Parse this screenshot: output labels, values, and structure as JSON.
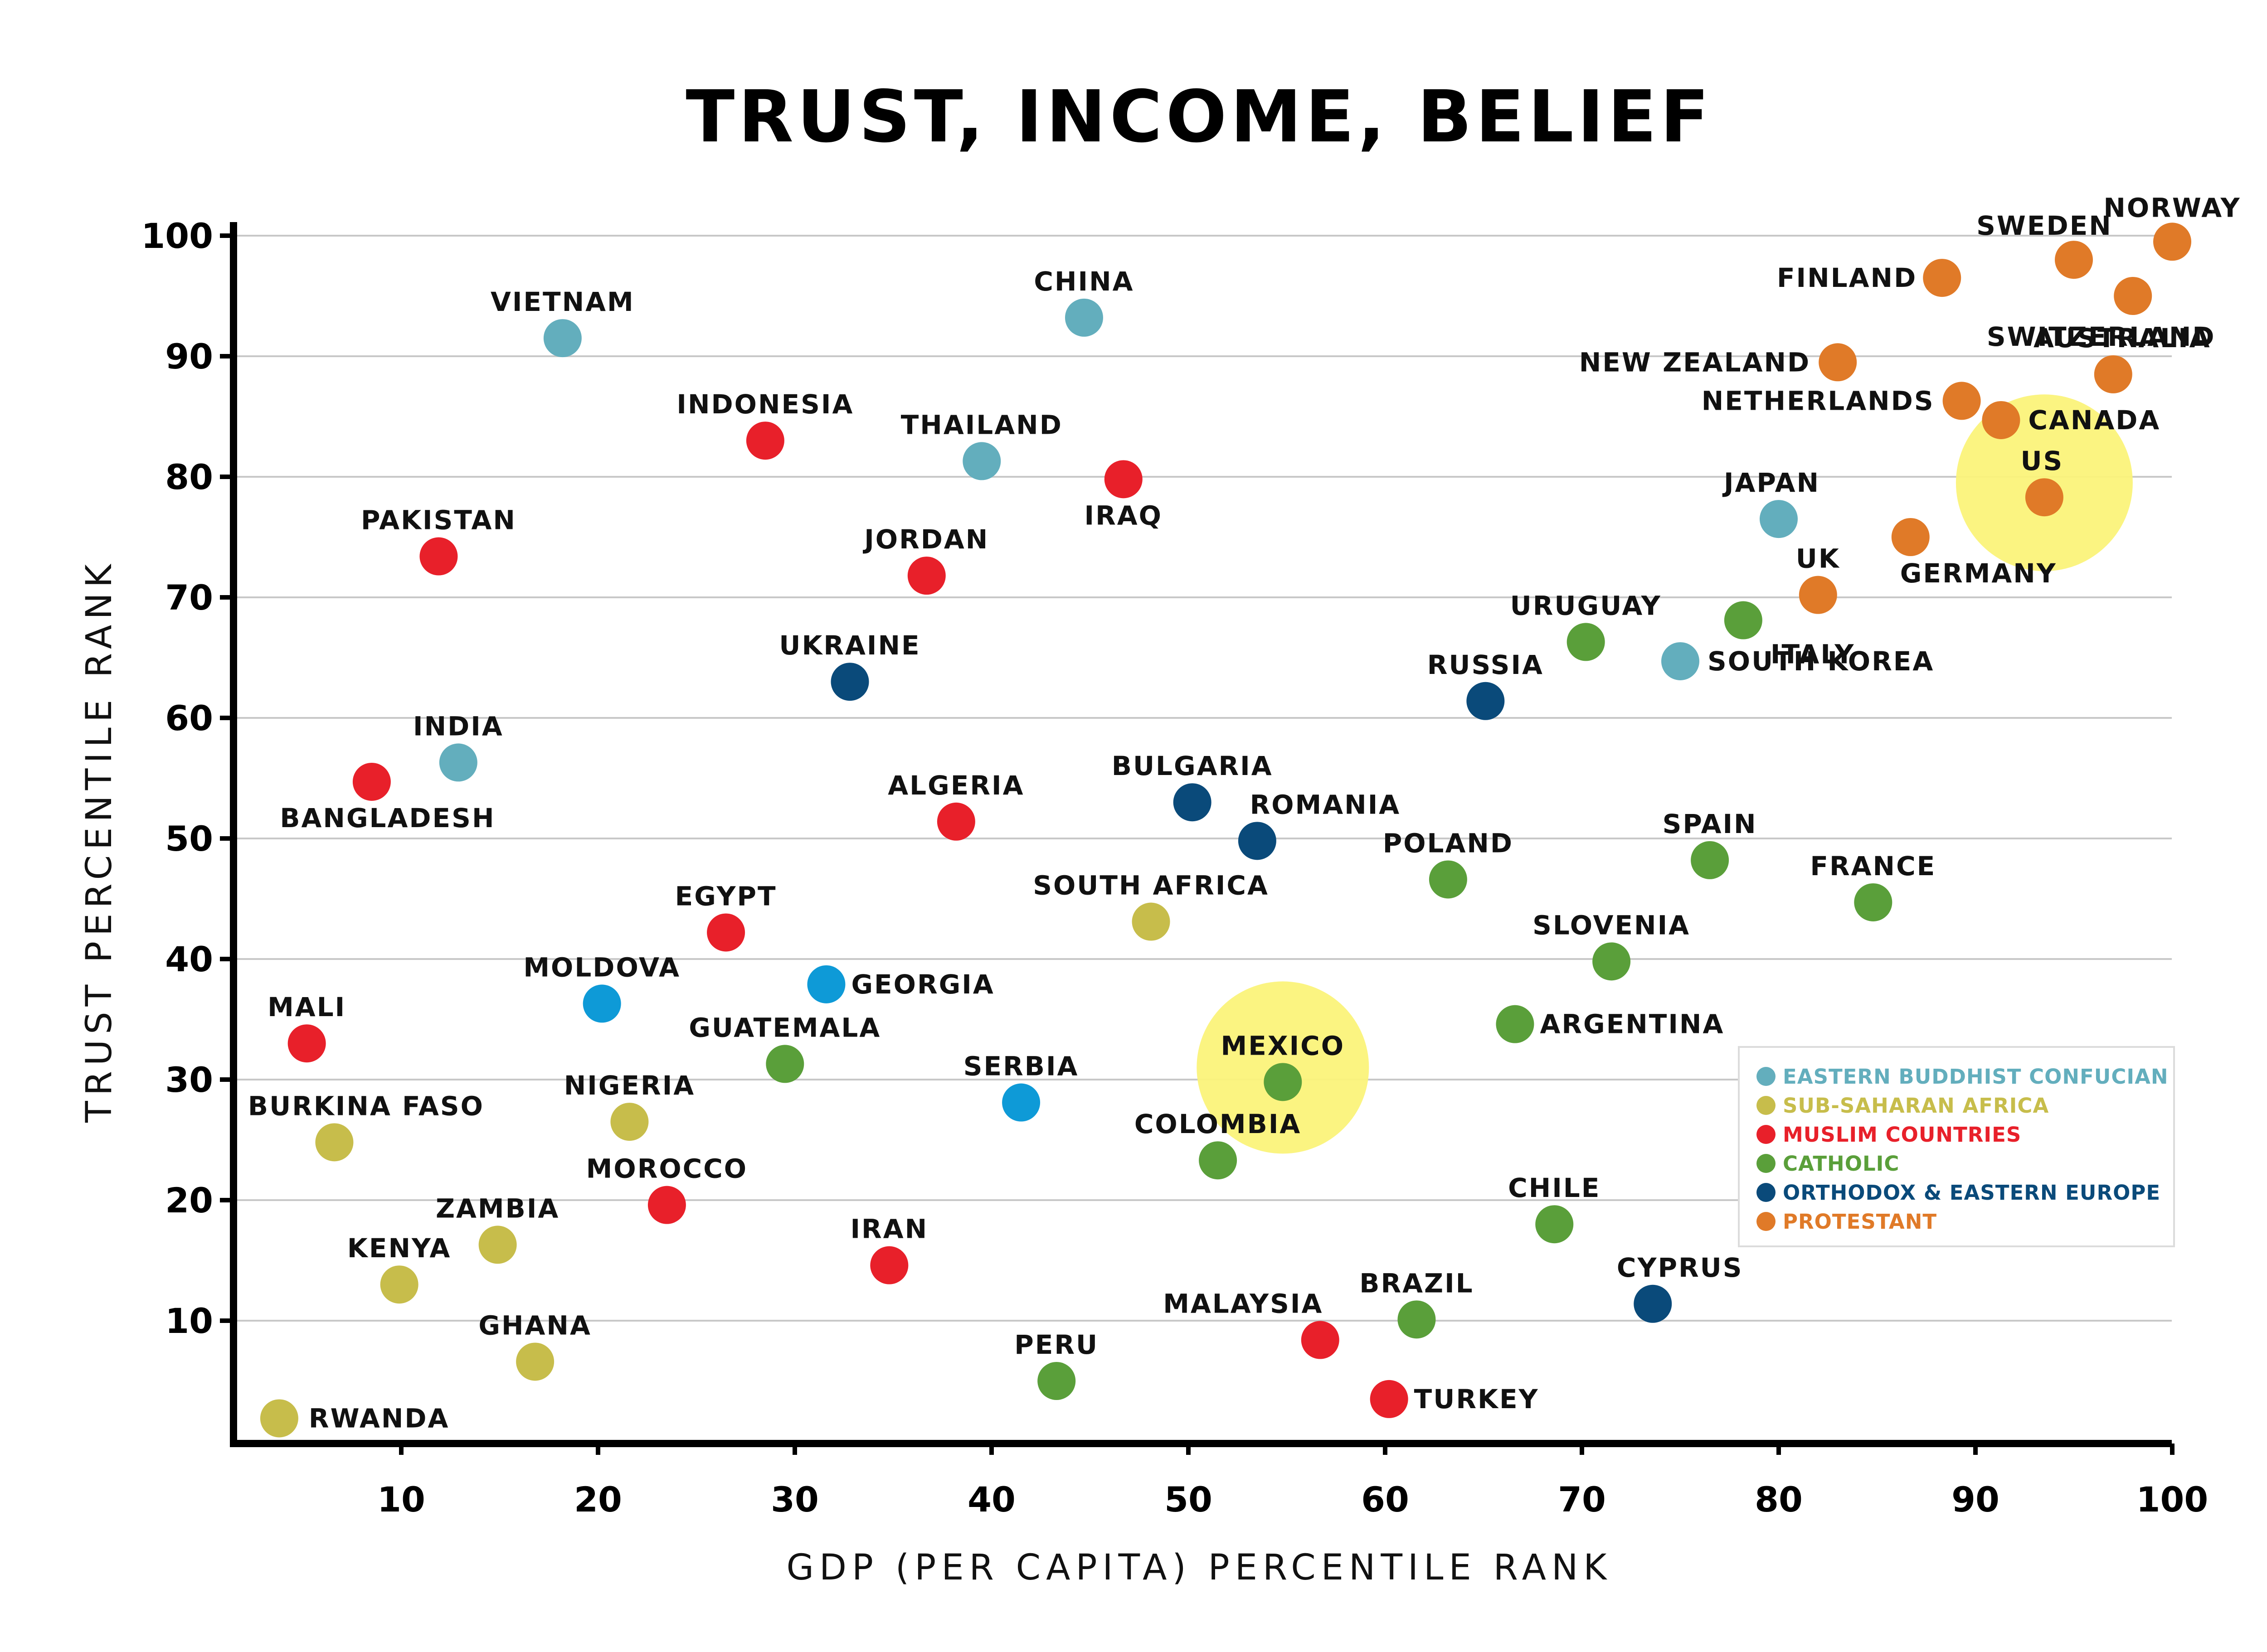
{
  "chart_data": {
    "type": "scatter",
    "title": "TRUST, INCOME, BELIEF",
    "xlabel": "GDP (PER CAPITA) PERCENTILE RANK",
    "ylabel": "TRUST PERCENTILE RANK",
    "xlim": [
      1,
      100
    ],
    "ylim": [
      0,
      100
    ],
    "x_ticks": [
      10,
      20,
      30,
      40,
      50,
      60,
      70,
      80,
      90,
      100
    ],
    "y_ticks": [
      10,
      20,
      30,
      40,
      50,
      60,
      70,
      80,
      90,
      100
    ],
    "grid": "horizontal",
    "legend_position": "bottom-right",
    "groups": [
      {
        "name": "EASTERN BUDDHIST CONFUCIAN",
        "color": "#63aebd"
      },
      {
        "name": "SUB-SAHARAN AFRICA",
        "color": "#c7bd4b"
      },
      {
        "name": "MUSLIM COUNTRIES",
        "color": "#e8202a"
      },
      {
        "name": "CATHOLIC",
        "color": "#5a9f3a"
      },
      {
        "name": "ORTHODOX & EASTERN EUROPE",
        "color": "#0a4a7a"
      },
      {
        "name": "PROTESTANT",
        "color": "#e07a28"
      }
    ],
    "highlights": [
      {
        "label": "MEXICO",
        "x": 54.8,
        "y": 31
      },
      {
        "label": "US",
        "x": 93.5,
        "y": 79.5
      }
    ],
    "points": [
      {
        "label": "NORWAY",
        "x": 100,
        "y": 99.5,
        "group": 5,
        "color": "#e07a28"
      },
      {
        "label": "SWEDEN",
        "x": 95,
        "y": 98,
        "group": 5,
        "color": "#e07a28"
      },
      {
        "label": "FINLAND",
        "x": 88.3,
        "y": 96.5,
        "group": 5,
        "color": "#e07a28"
      },
      {
        "label": "SWITZERLAND",
        "x": 98,
        "y": 95,
        "group": 5,
        "color": "#e07a28"
      },
      {
        "label": "NEW ZEALAND",
        "x": 83,
        "y": 89.5,
        "group": 5,
        "color": "#e07a28"
      },
      {
        "label": "AUSTRALIA",
        "x": 97,
        "y": 88.5,
        "group": 5,
        "color": "#e07a28"
      },
      {
        "label": "NETHERLANDS",
        "x": 89.3,
        "y": 86.3,
        "group": 5,
        "color": "#e07a28"
      },
      {
        "label": "CANADA",
        "x": 91.3,
        "y": 84.7,
        "group": 5,
        "color": "#e07a28"
      },
      {
        "label": "US",
        "x": 93.5,
        "y": 78.3,
        "group": 5,
        "color": "#e07a28"
      },
      {
        "label": "GERMANY",
        "x": 86.7,
        "y": 75,
        "group": 5,
        "color": "#e07a28"
      },
      {
        "label": "UK",
        "x": 82,
        "y": 70.2,
        "group": 5,
        "color": "#e07a28"
      },
      {
        "label": "JAPAN",
        "x": 80,
        "y": 76.5,
        "group": 0,
        "color": "#63aebd"
      },
      {
        "label": "SOUTH KOREA",
        "x": 75,
        "y": 64.7,
        "group": 0,
        "color": "#63aebd"
      },
      {
        "label": "VIETNAM",
        "x": 18.2,
        "y": 91.5,
        "group": 0,
        "color": "#63aebd"
      },
      {
        "label": "CHINA",
        "x": 44.7,
        "y": 93.2,
        "group": 0,
        "color": "#63aebd"
      },
      {
        "label": "THAILAND",
        "x": 39.5,
        "y": 81.3,
        "group": 0,
        "color": "#63aebd"
      },
      {
        "label": "INDIA",
        "x": 12.9,
        "y": 56.3,
        "group": 0,
        "color": "#63aebd"
      },
      {
        "label": "INDONESIA",
        "x": 28.5,
        "y": 83,
        "group": 2,
        "color": "#e8202a"
      },
      {
        "label": "IRAQ",
        "x": 46.7,
        "y": 79.8,
        "group": 2,
        "color": "#e8202a"
      },
      {
        "label": "PAKISTAN",
        "x": 11.9,
        "y": 73.4,
        "group": 2,
        "color": "#e8202a"
      },
      {
        "label": "JORDAN",
        "x": 36.7,
        "y": 71.8,
        "group": 2,
        "color": "#e8202a"
      },
      {
        "label": "BANGLADESH",
        "x": 8.5,
        "y": 54.7,
        "group": 2,
        "color": "#e8202a"
      },
      {
        "label": "ALGERIA",
        "x": 38.2,
        "y": 51.4,
        "group": 2,
        "color": "#e8202a"
      },
      {
        "label": "EGYPT",
        "x": 26.5,
        "y": 42.2,
        "group": 2,
        "color": "#e8202a"
      },
      {
        "label": "MALI",
        "x": 5.2,
        "y": 33,
        "group": 2,
        "color": "#e8202a"
      },
      {
        "label": "MOROCCO",
        "x": 23.5,
        "y": 19.6,
        "group": 2,
        "color": "#e8202a"
      },
      {
        "label": "IRAN",
        "x": 34.8,
        "y": 14.6,
        "group": 2,
        "color": "#e8202a"
      },
      {
        "label": "MALAYSIA",
        "x": 56.7,
        "y": 8.4,
        "group": 2,
        "color": "#e8202a"
      },
      {
        "label": "TURKEY",
        "x": 60.2,
        "y": 3.5,
        "group": 2,
        "color": "#e8202a"
      },
      {
        "label": "UKRAINE",
        "x": 32.8,
        "y": 63,
        "group": 4,
        "color": "#0a4a7a"
      },
      {
        "label": "RUSSIA",
        "x": 65.1,
        "y": 61.4,
        "group": 4,
        "color": "#0a4a7a"
      },
      {
        "label": "BULGARIA",
        "x": 50.2,
        "y": 53,
        "group": 4,
        "color": "#0a4a7a"
      },
      {
        "label": "ROMANIA",
        "x": 53.5,
        "y": 49.8,
        "group": 4,
        "color": "#0a4a7a"
      },
      {
        "label": "CYPRUS",
        "x": 73.6,
        "y": 11.4,
        "group": 4,
        "color": "#0a4a7a"
      },
      {
        "label": "MOLDOVA",
        "x": 20.2,
        "y": 36.3,
        "group": 4,
        "color": "#0e9ad7"
      },
      {
        "label": "GEORGIA",
        "x": 31.6,
        "y": 37.9,
        "group": 4,
        "color": "#0e9ad7"
      },
      {
        "label": "SERBIA",
        "x": 41.5,
        "y": 28.1,
        "group": 4,
        "color": "#0e9ad7"
      },
      {
        "label": "URUGUAY",
        "x": 70.2,
        "y": 66.3,
        "group": 3,
        "color": "#5a9f3a"
      },
      {
        "label": "ITALY",
        "x": 78.2,
        "y": 68.1,
        "group": 3,
        "color": "#5a9f3a"
      },
      {
        "label": "SPAIN",
        "x": 76.5,
        "y": 48.2,
        "group": 3,
        "color": "#5a9f3a"
      },
      {
        "label": "FRANCE",
        "x": 84.8,
        "y": 44.7,
        "group": 3,
        "color": "#5a9f3a"
      },
      {
        "label": "POLAND",
        "x": 63.2,
        "y": 46.6,
        "group": 3,
        "color": "#5a9f3a"
      },
      {
        "label": "SLOVENIA",
        "x": 71.5,
        "y": 39.8,
        "group": 3,
        "color": "#5a9f3a"
      },
      {
        "label": "ARGENTINA",
        "x": 66.6,
        "y": 34.6,
        "group": 3,
        "color": "#5a9f3a"
      },
      {
        "label": "GUATEMALA",
        "x": 29.5,
        "y": 31.3,
        "group": 3,
        "color": "#5a9f3a"
      },
      {
        "label": "MEXICO",
        "x": 54.8,
        "y": 29.8,
        "group": 3,
        "color": "#5a9f3a"
      },
      {
        "label": "COLOMBIA",
        "x": 51.5,
        "y": 23.3,
        "group": 3,
        "color": "#5a9f3a"
      },
      {
        "label": "CHILE",
        "x": 68.6,
        "y": 18,
        "group": 3,
        "color": "#5a9f3a"
      },
      {
        "label": "BRAZIL",
        "x": 61.6,
        "y": 10.1,
        "group": 3,
        "color": "#5a9f3a"
      },
      {
        "label": "PERU",
        "x": 43.3,
        "y": 5,
        "group": 3,
        "color": "#5a9f3a"
      },
      {
        "label": "SOUTH AFRICA",
        "x": 48.1,
        "y": 43.1,
        "group": 1,
        "color": "#c7bd4b"
      },
      {
        "label": "NIGERIA",
        "x": 21.6,
        "y": 26.5,
        "group": 1,
        "color": "#c7bd4b"
      },
      {
        "label": "BURKINA FASO",
        "x": 6.6,
        "y": 24.8,
        "group": 1,
        "color": "#c7bd4b"
      },
      {
        "label": "ZAMBIA",
        "x": 14.9,
        "y": 16.3,
        "group": 1,
        "color": "#c7bd4b"
      },
      {
        "label": "KENYA",
        "x": 9.9,
        "y": 13,
        "group": 1,
        "color": "#c7bd4b"
      },
      {
        "label": "GHANA",
        "x": 16.8,
        "y": 6.6,
        "group": 1,
        "color": "#c7bd4b"
      },
      {
        "label": "RWANDA",
        "x": 3.8,
        "y": 1.9,
        "group": 1,
        "color": "#c7bd4b"
      }
    ]
  }
}
